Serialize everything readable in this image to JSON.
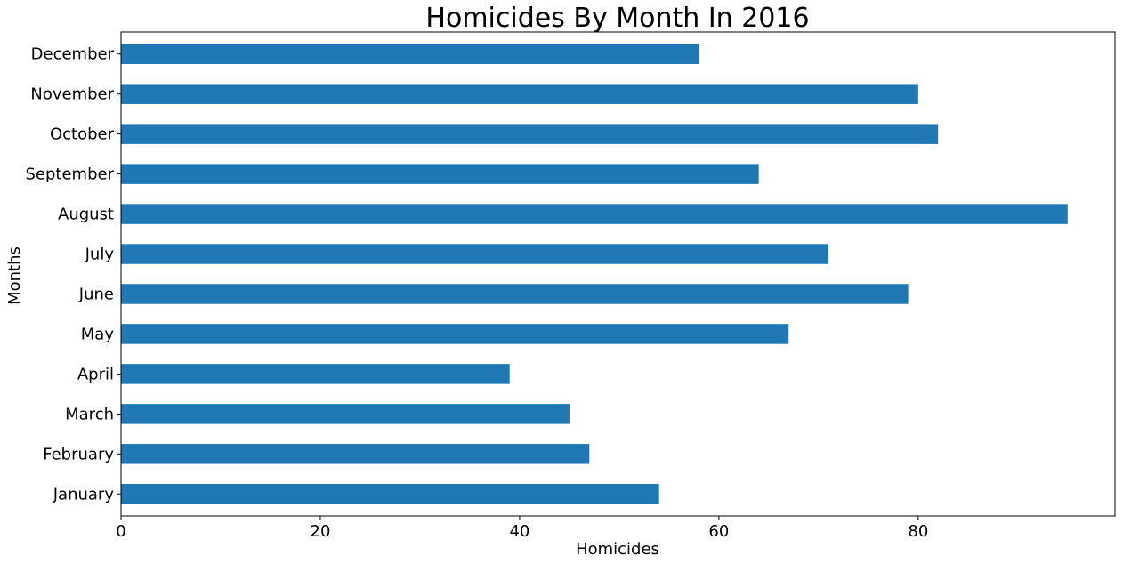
{
  "chart_data": {
    "type": "bar",
    "orientation": "horizontal",
    "title": "Homicides By Month In 2016",
    "xlabel": "Homicides",
    "ylabel": "Months",
    "categories": [
      "January",
      "February",
      "March",
      "April",
      "May",
      "June",
      "July",
      "August",
      "September",
      "October",
      "November",
      "December"
    ],
    "values": [
      54,
      47,
      45,
      39,
      67,
      79,
      71,
      95,
      64,
      82,
      80,
      58
    ],
    "xlim": [
      0,
      100
    ],
    "xticks": [
      0,
      20,
      40,
      60,
      80
    ],
    "xtick_labels": [
      "0",
      "20",
      "40",
      "60",
      "80"
    ],
    "grid": false,
    "legend": "none",
    "bar_color": "#1f77b4"
  }
}
